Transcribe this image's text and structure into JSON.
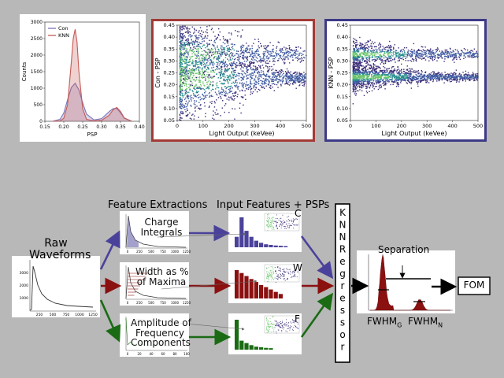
{
  "colors": {
    "background": "#b8b8b8",
    "con": "#7a73b8",
    "knn": "#c45a55",
    "red_frame": "#a33a36",
    "blue_frame": "#3d3a86",
    "arrow_blue": "#4a429a",
    "arrow_red": "#8b1010",
    "arrow_green": "#1a6b14"
  },
  "chart_data": [
    {
      "type": "line",
      "title": "",
      "xlabel": "PSP",
      "ylabel": "Counts",
      "xlim": [
        0.15,
        0.4
      ],
      "ylim": [
        0,
        3000
      ],
      "xticks": [
        "0.15",
        "0.20",
        "0.25",
        "0.30",
        "0.35",
        "0.40"
      ],
      "yticks": [
        "0",
        "500",
        "1000",
        "1500",
        "2000",
        "2500",
        "3000"
      ],
      "legend": "top-left",
      "series": [
        {
          "name": "Con",
          "x": [
            0.17,
            0.19,
            0.2,
            0.21,
            0.22,
            0.23,
            0.24,
            0.25,
            0.26,
            0.28,
            0.3,
            0.32,
            0.33,
            0.34,
            0.35,
            0.36,
            0.38
          ],
          "y": [
            0,
            60,
            250,
            650,
            1020,
            1150,
            950,
            560,
            220,
            40,
            80,
            290,
            380,
            390,
            260,
            90,
            0
          ]
        },
        {
          "name": "KNN",
          "x": [
            0.17,
            0.19,
            0.2,
            0.21,
            0.22,
            0.225,
            0.23,
            0.235,
            0.24,
            0.25,
            0.26,
            0.28,
            0.3,
            0.32,
            0.33,
            0.34,
            0.35,
            0.36,
            0.38
          ],
          "y": [
            0,
            10,
            90,
            500,
            1800,
            2500,
            2780,
            2400,
            1500,
            380,
            60,
            10,
            30,
            180,
            340,
            420,
            300,
            100,
            0
          ]
        }
      ]
    },
    {
      "type": "heatmap",
      "title": "",
      "xlabel": "Light Output (keVee)",
      "ylabel": "Con - PSP",
      "xlim": [
        0,
        500
      ],
      "ylim": [
        0.05,
        0.45
      ],
      "xticks": [
        "0",
        "100",
        "200",
        "300",
        "400",
        "500"
      ],
      "yticks": [
        "0.05",
        "0.10",
        "0.15",
        "0.20",
        "0.25",
        "0.30",
        "0.35",
        "0.40",
        "0.45"
      ],
      "bands": [
        {
          "center": 0.23,
          "spread_low_x": 0.15,
          "spread_high_x": 0.015
        },
        {
          "center": 0.33,
          "spread_low_x": 0.1,
          "spread_high_x": 0.015
        }
      ]
    },
    {
      "type": "heatmap",
      "title": "",
      "xlabel": "Light Output (keVee)",
      "ylabel": "KNN - PSP",
      "xlim": [
        0,
        500
      ],
      "ylim": [
        0.05,
        0.45
      ],
      "xticks": [
        "0",
        "100",
        "200",
        "300",
        "400",
        "500"
      ],
      "yticks": [
        "0.05",
        "0.10",
        "0.15",
        "0.20",
        "0.25",
        "0.30",
        "0.35",
        "0.40",
        "0.45"
      ],
      "bands": [
        {
          "center": 0.235,
          "spread_low_x": 0.03,
          "spread_high_x": 0.008
        },
        {
          "center": 0.33,
          "spread_low_x": 0.03,
          "spread_high_x": 0.01
        }
      ]
    }
  ],
  "diagram": {
    "raw": {
      "label": "Raw\nWaveforms",
      "xticks": [
        "250",
        "500",
        "750",
        "1000",
        "1250"
      ],
      "yticks": [
        "1000",
        "2000",
        "3000"
      ]
    },
    "feature_extractions_heading": "Feature Extractions",
    "input_features_heading": "Input Features + PSPs",
    "features": [
      {
        "text": "Charge\nIntegrals",
        "letter": "C",
        "color": "#4a429a",
        "bars": [
          0.35,
          1.0,
          0.55,
          0.35,
          0.22,
          0.15,
          0.1,
          0.08,
          0.06,
          0.05,
          0.04
        ],
        "xticks": [
          "0",
          "250",
          "500",
          "750",
          "1000",
          "1250"
        ]
      },
      {
        "text": "Width as %\nof Maxima",
        "letter": "W",
        "color": "#8b1010",
        "bars": [
          0.95,
          0.85,
          0.75,
          0.65,
          0.55,
          0.45,
          0.38,
          0.3,
          0.22,
          0.15
        ],
        "xticks": [
          "0",
          "250",
          "500",
          "750",
          "1000",
          "1250"
        ]
      },
      {
        "text": "Amplitude of\nFrequency\nComponents",
        "letter": "F",
        "color": "#1a6b14",
        "bars": [
          1.0,
          0.3,
          0.22,
          0.15,
          0.1,
          0.08,
          0.06,
          0.05
        ],
        "xticks": [
          "0",
          "20",
          "40",
          "60",
          "80",
          "100"
        ]
      }
    ],
    "regressor_letters": [
      "K",
      "N",
      "N",
      "R",
      "e",
      "g",
      "r",
      "e",
      "s",
      "s",
      "o",
      "r"
    ],
    "separation_label": "Separation",
    "fwhm_g": {
      "base": "FWHM",
      "sub": "G"
    },
    "fwhm_n": {
      "base": "FWHM",
      "sub": "N"
    },
    "fom_label": "FOM"
  }
}
